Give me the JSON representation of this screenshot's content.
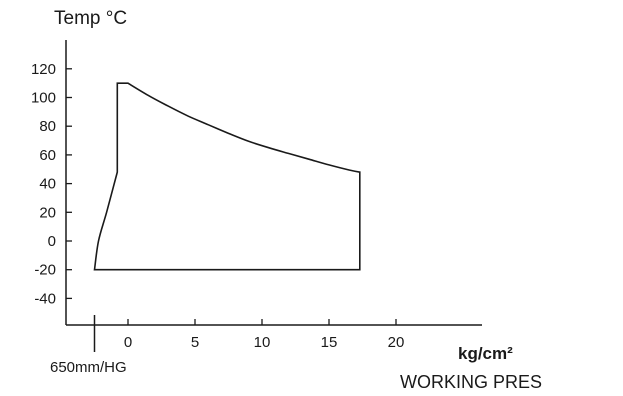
{
  "chart_data": {
    "type": "area",
    "title": "Temp °C",
    "xlabel": "WORKING PRES",
    "x_unit": "kg/cm²",
    "vacuum_label": "650mm/HG",
    "ylim": [
      -50,
      140
    ],
    "xlim": [
      -2.7,
      27
    ],
    "x_ticks": [
      "0",
      "5",
      "10",
      "15",
      "20"
    ],
    "x_tick_values": [
      0,
      5,
      10,
      15,
      20
    ],
    "y_ticks": [
      "120",
      "100",
      "80",
      "60",
      "40",
      "20",
      "0",
      "-20",
      "-40"
    ],
    "y_tick_values": [
      120,
      100,
      80,
      60,
      40,
      20,
      0,
      -20,
      -40
    ],
    "vacuum_marker_x": -2.5,
    "grid": false,
    "legend": "none",
    "series": [
      {
        "type": "envelope",
        "boundary": [
          [
            -2.5,
            -20
          ],
          [
            -2.2,
            0
          ],
          [
            -1.6,
            20
          ],
          [
            -0.8,
            48
          ],
          [
            -0.8,
            110
          ],
          [
            0,
            110
          ],
          [
            1.5,
            101.5
          ],
          [
            3,
            94
          ],
          [
            4.5,
            87
          ],
          [
            6,
            81
          ],
          [
            7.5,
            75
          ],
          [
            9,
            69.5
          ],
          [
            10.5,
            65
          ],
          [
            12,
            61
          ],
          [
            13.5,
            57
          ],
          [
            15,
            53
          ],
          [
            16.5,
            49.5
          ],
          [
            17.3,
            48
          ],
          [
            17.3,
            -20
          ]
        ]
      }
    ]
  }
}
